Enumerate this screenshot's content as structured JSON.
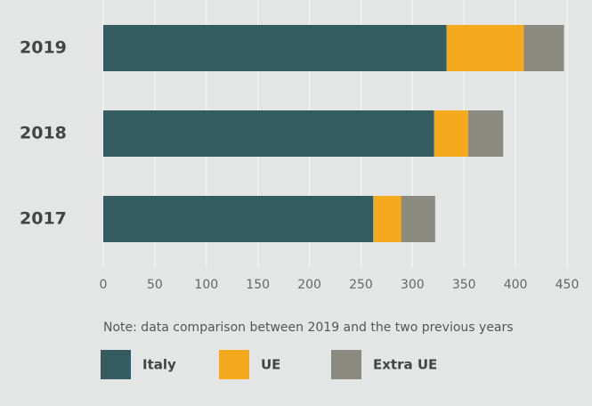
{
  "chart_data": {
    "type": "stacked_barh",
    "categories": [
      "2019",
      "2018",
      "2017"
    ],
    "series": [
      {
        "name": "Italy",
        "color": "#355c60",
        "values": [
          333,
          321,
          262
        ]
      },
      {
        "name": "UE",
        "color": "#f5a91d",
        "values": [
          75,
          33,
          27
        ]
      },
      {
        "name": "Extra UE",
        "color": "#8a8a80",
        "values": [
          39,
          34,
          33
        ]
      }
    ],
    "xlim": [
      0,
      450
    ],
    "xticks": [
      0,
      50,
      100,
      150,
      200,
      250,
      300,
      350,
      400,
      450
    ],
    "grid": true,
    "note": "Note: data comparison between 2019 and the two previous years"
  }
}
